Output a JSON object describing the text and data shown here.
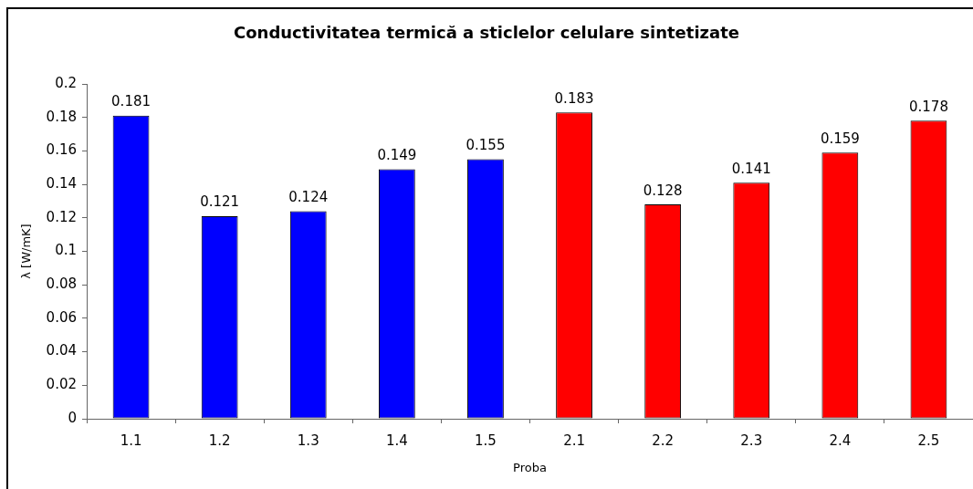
{
  "chart_data": {
    "type": "bar",
    "title": "Conductivitatea termică a sticlelor celulare sintetizate",
    "xlabel": "Proba",
    "ylabel": "λ [W/mK]",
    "categories": [
      "1.1",
      "1.2",
      "1.3",
      "1.4",
      "1.5",
      "2.1",
      "2.2",
      "2.3",
      "2.4",
      "2.5"
    ],
    "values": [
      0.181,
      0.121,
      0.124,
      0.149,
      0.155,
      0.183,
      0.128,
      0.141,
      0.159,
      0.178
    ],
    "colors": [
      "#0000ff",
      "#0000ff",
      "#0000ff",
      "#0000ff",
      "#0000ff",
      "#ff0000",
      "#ff0000",
      "#ff0000",
      "#ff0000",
      "#ff0000"
    ],
    "ylim": [
      0,
      0.2
    ],
    "yticks": [
      0,
      0.02,
      0.04,
      0.06,
      0.08,
      0.1,
      0.12,
      0.14,
      0.16,
      0.18,
      0.2
    ],
    "data_labels": true
  }
}
